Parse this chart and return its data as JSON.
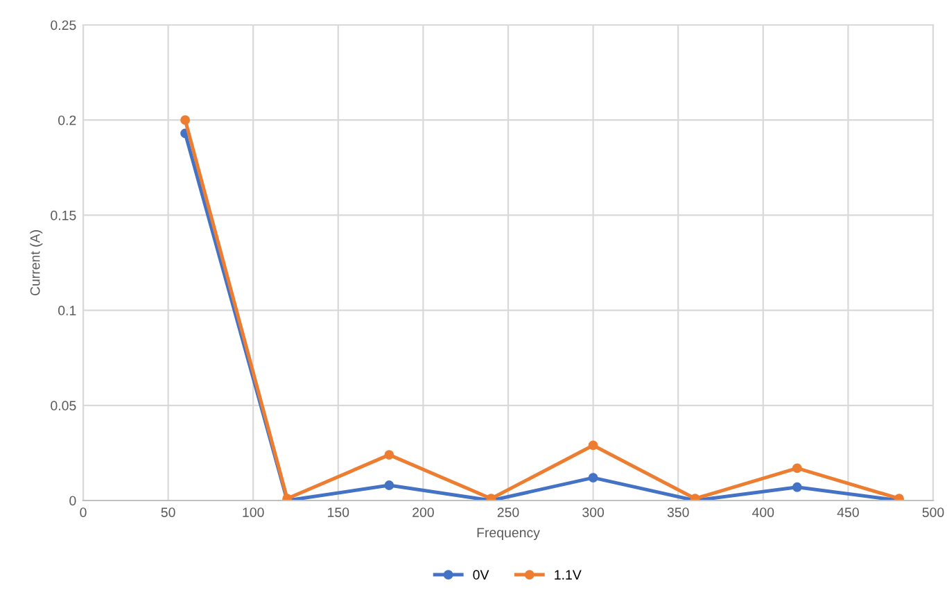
{
  "chart_data": {
    "type": "line",
    "xlabel": "Frequency",
    "ylabel": "Current (A)",
    "x": [
      60,
      120,
      180,
      240,
      300,
      360,
      420,
      480
    ],
    "series": [
      {
        "name": "0V",
        "color": "#4472c4",
        "values": [
          0.193,
          0,
          0.008,
          0,
          0.012,
          0,
          0.007,
          0
        ]
      },
      {
        "name": "1.1V",
        "color": "#ed7d31",
        "values": [
          0.2,
          0.001,
          0.024,
          0.001,
          0.029,
          0.001,
          0.017,
          0.001
        ]
      }
    ],
    "xlim": [
      0,
      500
    ],
    "xticks": [
      0,
      50,
      100,
      150,
      200,
      250,
      300,
      350,
      400,
      450,
      500
    ],
    "ylim": [
      0,
      0.25
    ],
    "yticks": [
      0,
      0.05,
      0.1,
      0.15,
      0.2,
      0.25
    ],
    "grid": true,
    "legend": "bottom",
    "marker": "circle",
    "line_style": "solid"
  }
}
